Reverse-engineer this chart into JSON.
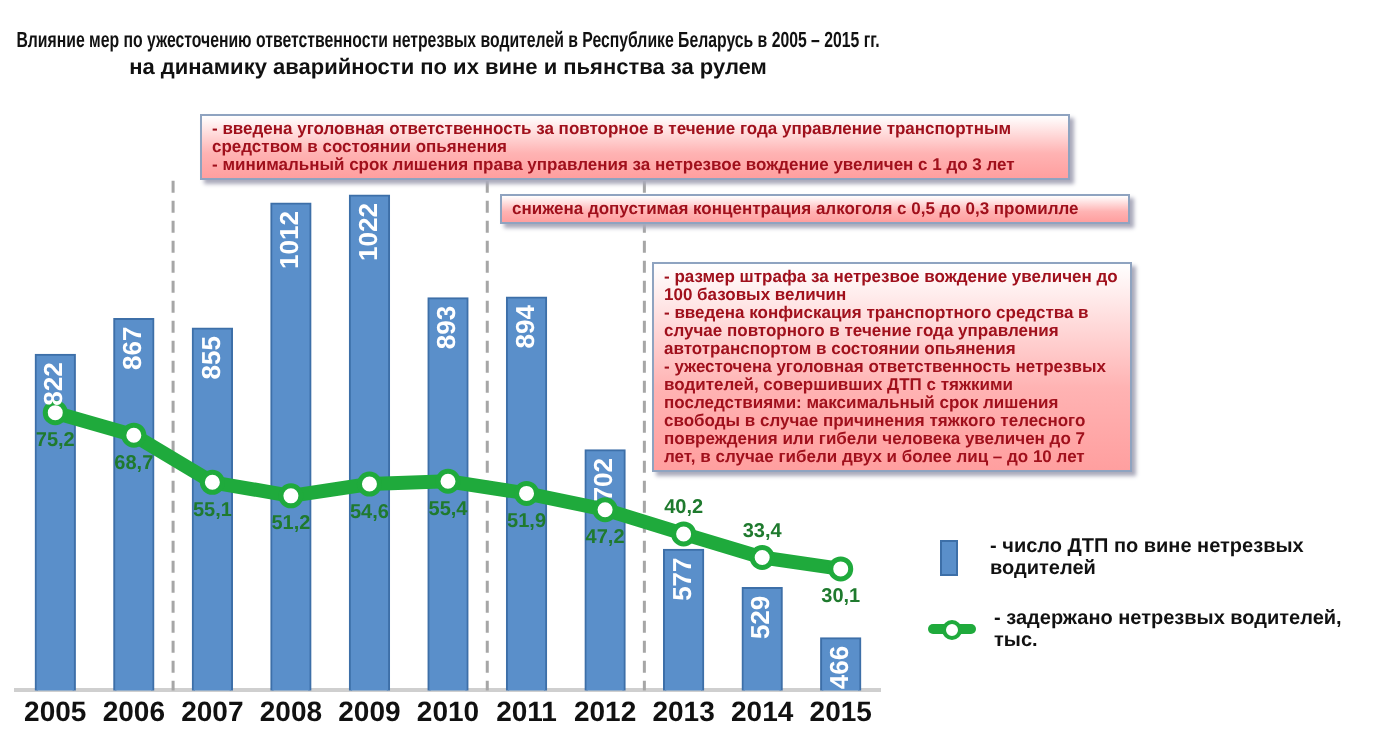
{
  "chart_data": {
    "type": "bar",
    "title": "Влияние мер по ужесточению ответственности нетрезвых водителей в Республике Беларусь в 2005 – 2015 гг.\nна динамику аварийности по их вине и пьянства за рулем",
    "x": [
      2005,
      2006,
      2007,
      2008,
      2009,
      2010,
      2011,
      2012,
      2013,
      2014,
      2015
    ],
    "xlim": [
      2004.5,
      2015.5
    ],
    "xticks": [
      2005,
      2006,
      2007,
      2008,
      2009,
      2010,
      2011,
      2012,
      2013,
      2014,
      2015
    ],
    "ylim": [
      400,
      1040
    ],
    "tick_labels": "x",
    "series": [
      {
        "name": "- число ДТП по вине нетрезвых водителей",
        "color": "#5a8fca",
        "values": [
          822,
          867,
          855,
          1012,
          1022,
          893,
          894,
          702,
          577,
          529,
          466
        ],
        "value_labels": [
          "822",
          "867",
          "855",
          "1012",
          "1022",
          "893",
          "894",
          "702",
          "577",
          "529",
          "466"
        ]
      },
      {
        "name": "- задержано нетрезвых водителей, тыс.",
        "type": "line",
        "axis": "y2",
        "color": "#1faa3c",
        "values": [
          75.2,
          68.7,
          55.1,
          51.2,
          54.6,
          55.4,
          51.9,
          47.2,
          40.2,
          33.4,
          30.1
        ],
        "value_labels": [
          "75,2",
          "68,7",
          "55,1",
          "51,2",
          "54,6",
          "55,4",
          "51,9",
          "47,2",
          "40,2",
          "33,4",
          "30,1"
        ]
      }
    ],
    "ref_lines": [
      {
        "axis": "x",
        "value": 2006.5,
        "color": "#a6a6a6",
        "line_style": "dashed"
      },
      {
        "axis": "x",
        "value": 2010.5,
        "color": "#a6a6a6",
        "line_style": "dashed"
      },
      {
        "axis": "x",
        "value": 2012.5,
        "color": "#a6a6a6",
        "line_style": "dashed"
      }
    ],
    "annotations": [
      "- введена уголовная ответственность за повторное в течение года управление транспортным средством в состоянии опьянения\n- минимальный срок лишения права управления за нетрезвое вождение увеличен с 1 до 3 лет",
      "снижена допустимая концентрация алкоголя с 0,5 до 0,3 промилле",
      "- размер штрафа за нетрезвое вождение увеличен до 100 базовых величин\n- введена конфискация транспортного средства в случае повторного в течение года управления автотранспортом в состоянии опьянения\n- ужесточена уголовная ответственность нетрезвых водителей, совершивших ДТП с тяжкими последствиями: максимальный срок лишения свободы в случае причинения тяжкого телесного повреждения или гибели человека увеличен до 7 лет, в случае гибели двух и более лиц – до 10 лет"
    ],
    "grid": false,
    "legend": "right",
    "marker": "circle",
    "line_style": "solid"
  }
}
